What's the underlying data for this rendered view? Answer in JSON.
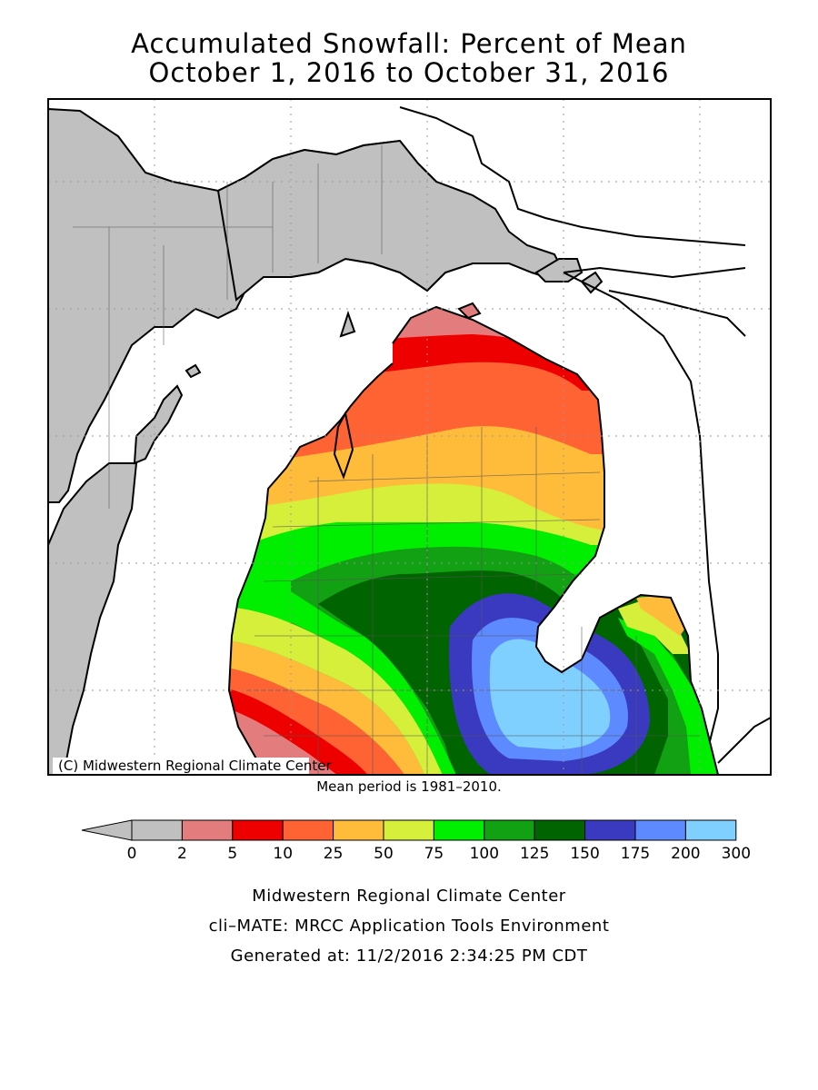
{
  "title": {
    "line1": "Accumulated Snowfall: Percent of Mean",
    "line2": "October 1, 2016 to October 31, 2016"
  },
  "map": {
    "copyright": "(C) Midwestern Regional Climate Center",
    "mean_note": "Mean period is 1981–2010.",
    "land_color": "#ffffff",
    "water_color": "#ffffff",
    "no_data_color": "#c0c0c0"
  },
  "legend": {
    "tick_labels": [
      "0",
      "2",
      "5",
      "10",
      "25",
      "50",
      "75",
      "100",
      "125",
      "150",
      "175",
      "200",
      "300"
    ],
    "colors": [
      "#c0c0c0",
      "#e37c7c",
      "#ee0000",
      "#ff6233",
      "#ffbb3a",
      "#d5ef3a",
      "#00ee00",
      "#12a112",
      "#006400",
      "#3a3ac0",
      "#5d8bff",
      "#7fcfff"
    ]
  },
  "footer": {
    "line1": "Midwestern Regional Climate Center",
    "line2": "cli–MATE: MRCC Application Tools Environment",
    "line3": "Generated at: 11/2/2016 2:34:25 PM CDT"
  }
}
